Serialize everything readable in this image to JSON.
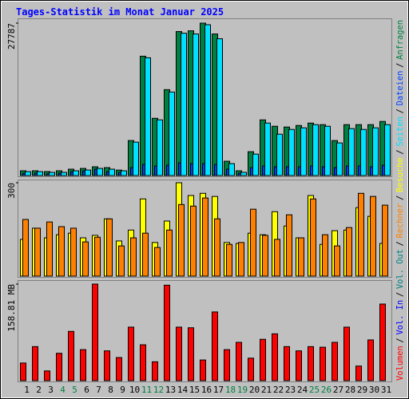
{
  "legend_separator": "/",
  "chart_data": [
    {
      "type": "bar",
      "title": "Tages-Statistik im Monat Januar 2025",
      "ylim": [
        0,
        27787
      ],
      "yticks": [
        27787
      ],
      "series": [
        {
          "name": "Seiten",
          "color": "#00e0ff",
          "values": [
            720,
            720,
            580,
            580,
            870,
            1010,
            1300,
            1160,
            870,
            6090,
            21470,
            10150,
            15230,
            25950,
            25810,
            27500,
            24940,
            2180,
            580,
            3910,
            9570,
            7540,
            8410,
            8700,
            9280,
            8990,
            5950,
            8560,
            8410,
            8700,
            9280
          ]
        },
        {
          "name": "Dateien",
          "color": "#0040ff",
          "values": [
            430,
            430,
            290,
            430,
            720,
            870,
            1160,
            720,
            580,
            1450,
            2030,
            1740,
            1890,
            2320,
            2180,
            2180,
            2030,
            1160,
            440,
            1450,
            1740,
            1600,
            1600,
            1600,
            1740,
            1600,
            1450,
            1740,
            1740,
            1600,
            1890
          ]
        },
        {
          "name": "Anfragen",
          "color": "#008040",
          "values": [
            870,
            870,
            725,
            870,
            1160,
            1300,
            1600,
            1450,
            1000,
            6380,
            21760,
            10440,
            15660,
            26250,
            26390,
            27787,
            25810,
            2610,
            870,
            4350,
            10150,
            8990,
            8850,
            9130,
            9570,
            9280,
            6380,
            9280,
            9280,
            9280,
            9860
          ]
        }
      ]
    },
    {
      "type": "bar",
      "ylim": [
        0,
        300
      ],
      "yticks": [
        300
      ],
      "series": [
        {
          "name": "Rechner",
          "color": "#ff8000",
          "values": [
            182,
            154,
            174,
            159,
            154,
            110,
            125,
            184,
            97,
            123,
            138,
            92,
            148,
            230,
            225,
            251,
            184,
            102,
            108,
            215,
            131,
            118,
            197,
            123,
            248,
            133,
            97,
            156,
            266,
            256,
            228
          ]
        },
        {
          "name": "Besuche",
          "color": "#ffff00",
          "values": [
            118,
            154,
            123,
            133,
            138,
            123,
            131,
            184,
            113,
            148,
            248,
            108,
            177,
            300,
            259,
            266,
            256,
            108,
            105,
            138,
            133,
            207,
            161,
            123,
            259,
            102,
            146,
            148,
            220,
            192,
            105
          ]
        }
      ]
    },
    {
      "type": "bar",
      "ylim": [
        0,
        158.81
      ],
      "yticks": [
        {
          "value": 158.81,
          "label": "158.81 MB"
        }
      ],
      "categories": [
        "1",
        "2",
        "3",
        "4",
        "5",
        "6",
        "7",
        "8",
        "9",
        "10",
        "11",
        "12",
        "13",
        "14",
        "15",
        "16",
        "17",
        "18",
        "19",
        "20",
        "21",
        "22",
        "23",
        "24",
        "25",
        "26",
        "27",
        "28",
        "29",
        "30",
        "31"
      ],
      "category_colors": [
        "#000000",
        "#000000",
        "#000000",
        "#008040",
        "#008040",
        "#000000",
        "#000000",
        "#000000",
        "#000000",
        "#000000",
        "#008040",
        "#008040",
        "#000000",
        "#000000",
        "#000000",
        "#000000",
        "#000000",
        "#008040",
        "#008040",
        "#000000",
        "#000000",
        "#000000",
        "#000000",
        "#000000",
        "#008040",
        "#008040",
        "#000000",
        "#000000",
        "#000000",
        "#000000",
        "#000000"
      ],
      "series": [
        {
          "name": "Volumen",
          "color": "#ff0000",
          "values": [
            29,
            56,
            16,
            45,
            81,
            51,
            158.81,
            49,
            38,
            88,
            59,
            31,
            157,
            88,
            87,
            34,
            113,
            51,
            63,
            37,
            68,
            77,
            56,
            49,
            56,
            55,
            63,
            88,
            24,
            67,
            126
          ]
        },
        {
          "name": "Vol. In",
          "color": "#0000ff"
        },
        {
          "name": "Vol. Out",
          "color": "#008080"
        }
      ]
    }
  ]
}
